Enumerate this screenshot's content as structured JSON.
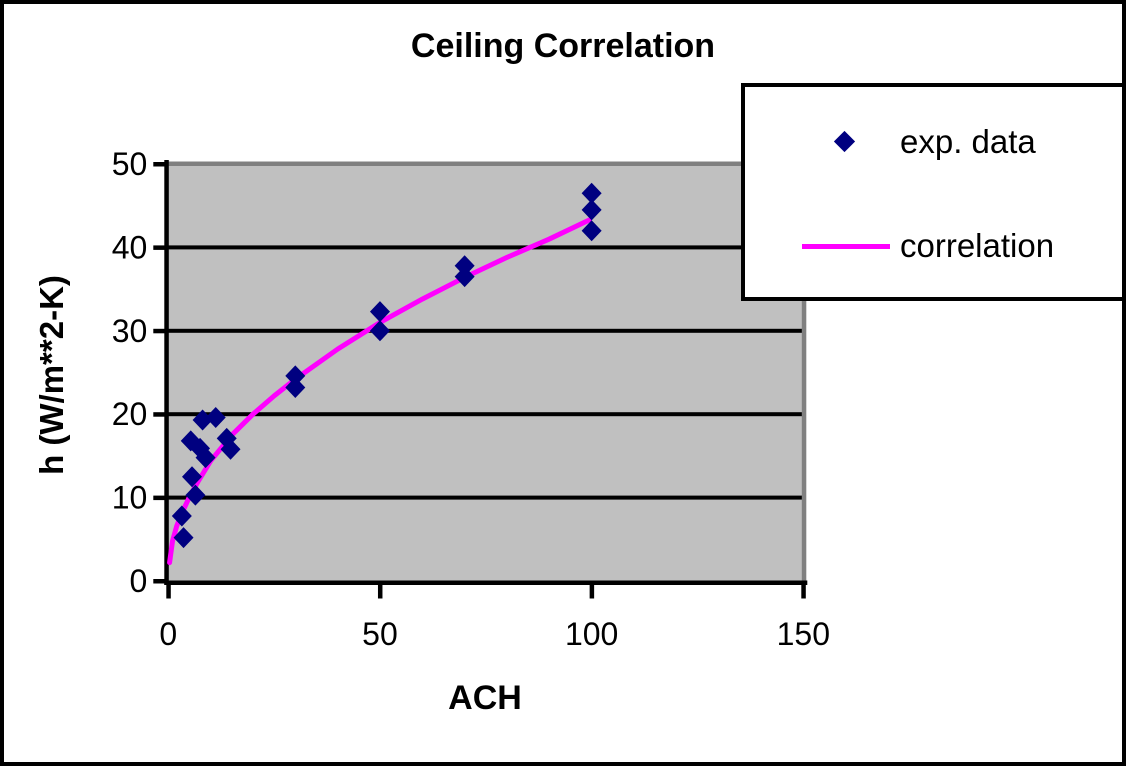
{
  "chart_data": {
    "type": "scatter",
    "title": "Ceiling Correlation",
    "xlabel": "ACH",
    "ylabel": "h (W/m**2-K)",
    "xlim": [
      0,
      150
    ],
    "ylim": [
      0,
      50
    ],
    "xticks": [
      0,
      50,
      100,
      150
    ],
    "yticks": [
      0,
      10,
      20,
      30,
      40,
      50
    ],
    "grid": "horizontal-black",
    "plot_background": "#C0C0C0",
    "plot_border_color": "#808080",
    "legend_position": "top-right",
    "series": [
      {
        "name": "exp. data",
        "type": "scatter",
        "marker": "diamond",
        "color": "#000080",
        "points": [
          [
            3.2,
            7.8
          ],
          [
            3.6,
            5.2
          ],
          [
            5.3,
            16.8
          ],
          [
            5.6,
            12.5
          ],
          [
            6.4,
            10.3
          ],
          [
            7.5,
            15.9
          ],
          [
            8.1,
            19.3
          ],
          [
            8.8,
            14.8
          ],
          [
            11.2,
            19.6
          ],
          [
            13.8,
            17.1
          ],
          [
            14.7,
            15.8
          ],
          [
            30,
            23.2
          ],
          [
            30,
            24.6
          ],
          [
            50,
            30.0
          ],
          [
            50,
            32.3
          ],
          [
            70,
            36.5
          ],
          [
            70,
            37.8
          ],
          [
            100,
            42.0
          ],
          [
            100,
            44.5
          ],
          [
            100,
            46.5
          ]
        ]
      },
      {
        "name": "correlation",
        "type": "line",
        "color": "#FF00FF",
        "points": [
          [
            0.3,
            2.2
          ],
          [
            1,
            4.8
          ],
          [
            2,
            6.6
          ],
          [
            3,
            7.9
          ],
          [
            5,
            10.1
          ],
          [
            7,
            11.9
          ],
          [
            10,
            14.4
          ],
          [
            15,
            17.5
          ],
          [
            20,
            20.0
          ],
          [
            25,
            22.2
          ],
          [
            30,
            24.2
          ],
          [
            40,
            27.8
          ],
          [
            50,
            31.0
          ],
          [
            60,
            33.8
          ],
          [
            70,
            36.4
          ],
          [
            80,
            38.8
          ],
          [
            90,
            41.0
          ],
          [
            99.5,
            43.3
          ]
        ]
      }
    ]
  },
  "colors": {
    "background": "#FFFFFF",
    "text": "#000000",
    "axis": "#000000",
    "marker": "#000080",
    "line": "#FF00FF",
    "plot_background": "#C0C0C0",
    "plot_border": "#808080"
  }
}
